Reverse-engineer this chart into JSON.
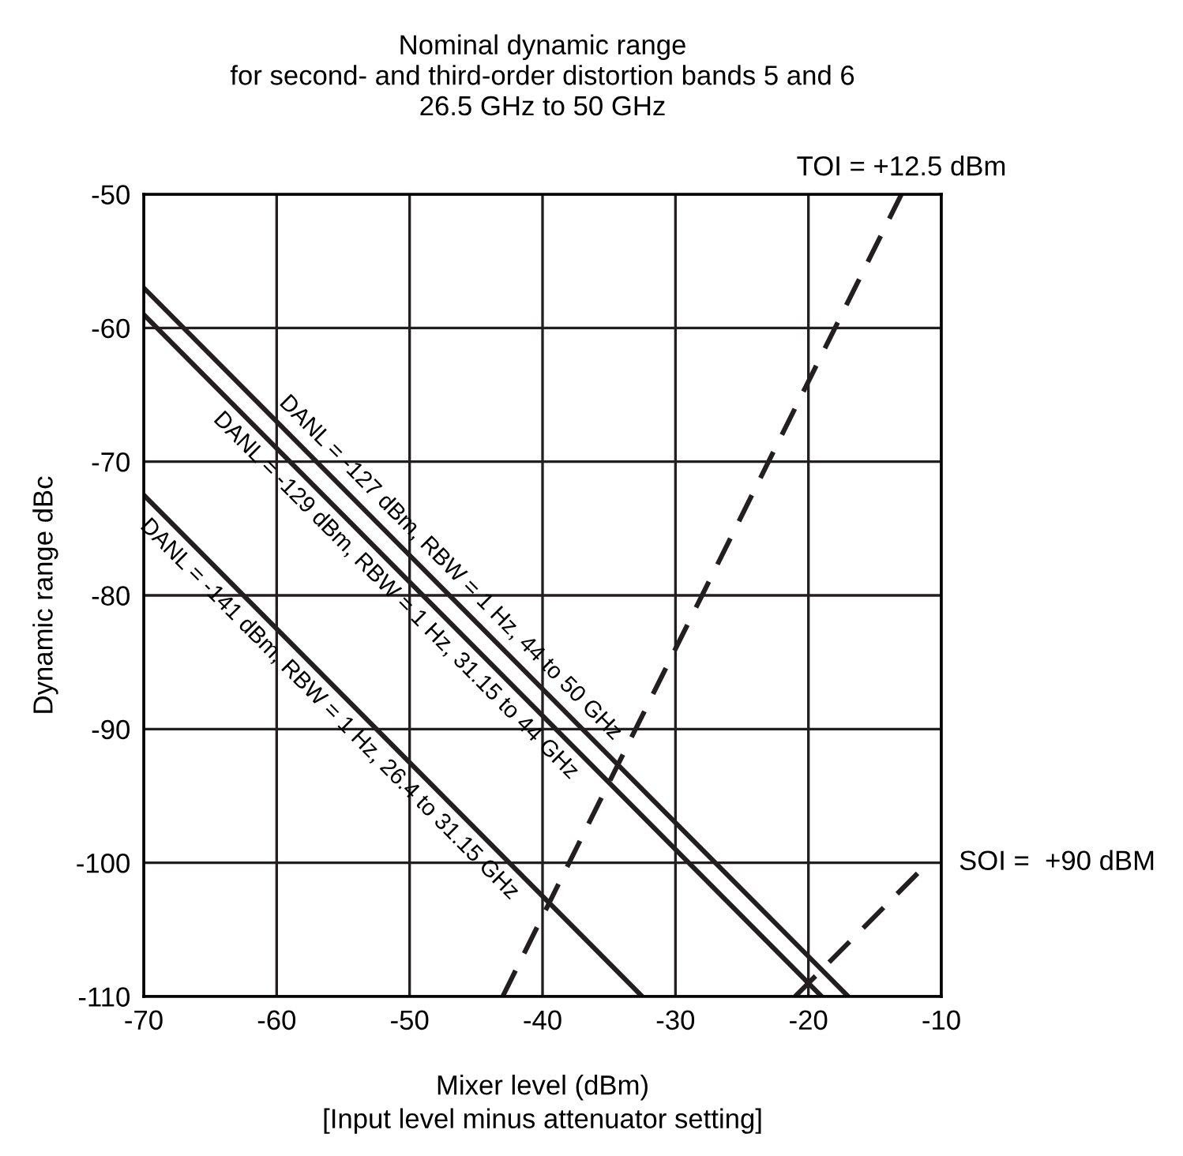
{
  "chart_data": {
    "type": "line",
    "title": "Nominal dynamic range\nfor second- and third-order distortion bands 5 and 6\n26.5 GHz to 50 GHz",
    "xlabel": "Mixer level (dBm)\n[Input level minus attenuator setting]",
    "ylabel": "Dynamic range dBc",
    "series": [
      {
        "x": [
          -70,
          -17
        ],
        "values": [
          -57,
          -110
        ],
        "color": "#231f20",
        "line_style": "solid"
      },
      {
        "x": [
          -70,
          -19
        ],
        "values": [
          -59,
          -110
        ],
        "color": "#231f20",
        "line_style": "solid"
      },
      {
        "x": [
          -70,
          -32.5
        ],
        "values": [
          -72.5,
          -110
        ],
        "color": "#231f20",
        "line_style": "solid"
      },
      {
        "x": [
          -43,
          -13
        ],
        "values": [
          -110,
          -50
        ],
        "color": "#231f20",
        "line_style": "dashed"
      },
      {
        "x": [
          -21,
          -11
        ],
        "values": [
          -110,
          -100
        ],
        "color": "#231f20",
        "line_style": "dashed"
      }
    ],
    "annotations": [
      {
        "text": "DANL = -127 dBm, RBW = 1 Hz, 44 to 50 GHz",
        "x": -48,
        "y": -79
      },
      {
        "text": "DANL = -129 dBm, RBW = 1 Hz, 31.15 to 44 GHz",
        "x": -50,
        "y": -79
      },
      {
        "text": "DANL = -141 dBm, RBW = 1 Hz, 26.4 to 31.15 GHz",
        "x": -55,
        "y": -87.5
      },
      {
        "text": "TOI = +12.5 dBm",
        "x": -13,
        "y": -50
      },
      {
        "text": "SOI =  +90 dBM",
        "x": -11,
        "y": -100
      }
    ],
    "xlim": [
      -70,
      -10
    ],
    "ylim": [
      -110,
      -50
    ],
    "xticks": [
      -70,
      -60,
      -50,
      -40,
      -30,
      -20,
      -10
    ],
    "yticks": [
      -110,
      -100,
      -90,
      -80,
      -70,
      -60,
      -50
    ],
    "grid": true,
    "legend": false,
    "marker": "none"
  }
}
